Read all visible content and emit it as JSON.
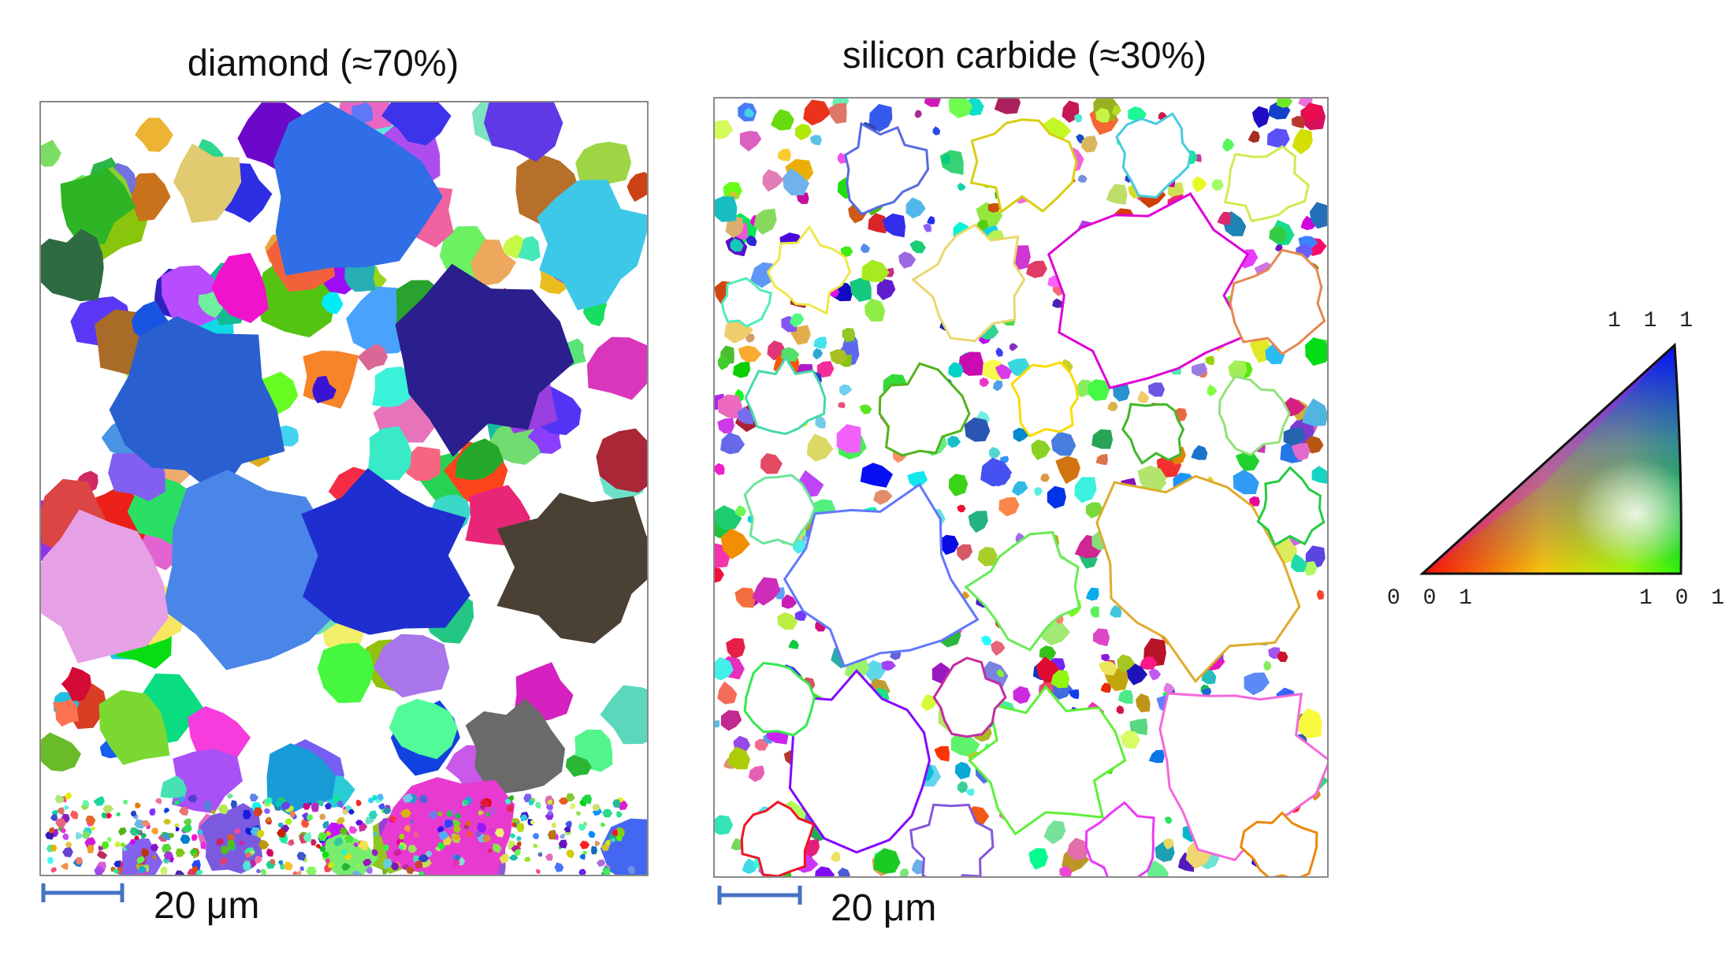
{
  "panels": [
    {
      "id": "diamond",
      "title": "diamond (≈70%)",
      "scale_bar_label": "20 μm"
    },
    {
      "id": "silicon-carbide",
      "title": "silicon carbide (≈30%)",
      "scale_bar_label": "20 μm"
    }
  ],
  "ipf_key": {
    "labels": {
      "top": "1 1 1",
      "bottom_left": "0 0 1",
      "bottom_right": "1 0 1"
    },
    "colors": {
      "001": "#ff0000",
      "101": "#00ff00",
      "111": "#0000ff"
    }
  },
  "colors": {
    "scale_bar": "#4472c4",
    "panel_border": "#8a8a8a",
    "background": "#ffffff"
  }
}
